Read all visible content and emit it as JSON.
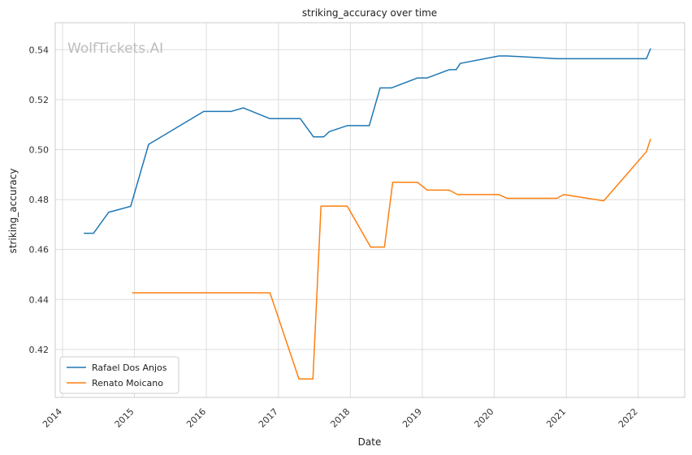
{
  "chart_data": {
    "type": "line",
    "title": "striking_accuracy over time",
    "xlabel": "Date",
    "ylabel": "striking_accuracy",
    "watermark": "WolfTickets.AI",
    "xlim": [
      "2013-11-25",
      "2022-08-25"
    ],
    "ylim": [
      0.4008,
      0.5508
    ],
    "x_ticks": [
      "2014",
      "2015",
      "2016",
      "2017",
      "2018",
      "2019",
      "2020",
      "2021",
      "2022"
    ],
    "y_ticks": [
      "0.42",
      "0.44",
      "0.46",
      "0.48",
      "0.50",
      "0.52",
      "0.54"
    ],
    "grid": true,
    "legend_position": "lower-left",
    "series": [
      {
        "name": "Rafael Dos Anjos",
        "color": "#1f77b4",
        "x": [
          "2014-04-19",
          "2014-06-07",
          "2014-08-23",
          "2014-12-13",
          "2015-03-14",
          "2015-12-19",
          "2016-05-07",
          "2016-07-07",
          "2016-11-19",
          "2017-04-22",
          "2017-06-28",
          "2017-08-19",
          "2017-09-16",
          "2017-12-16",
          "2018-04-07",
          "2018-06-01",
          "2018-07-28",
          "2018-12-08",
          "2019-01-26",
          "2019-05-18",
          "2019-06-22",
          "2019-07-13",
          "2020-01-25",
          "2020-03-07",
          "2020-11-14",
          "2022-02-12",
          "2022-03-05"
        ],
        "values": [
          0.4665,
          0.4665,
          0.4749,
          0.4773,
          0.5021,
          0.5153,
          0.5153,
          0.5167,
          0.5124,
          0.5124,
          0.5051,
          0.5051,
          0.5072,
          0.5096,
          0.5096,
          0.5247,
          0.5247,
          0.5287,
          0.5287,
          0.532,
          0.532,
          0.5345,
          0.5375,
          0.5375,
          0.5364,
          0.5364,
          0.5405
        ]
      },
      {
        "name": "Renato Moicano",
        "color": "#ff7f0e",
        "x": [
          "2014-12-20",
          "2016-11-19",
          "2017-04-15",
          "2017-06-25",
          "2017-08-05",
          "2017-12-16",
          "2018-04-14",
          "2018-06-23",
          "2018-08-04",
          "2018-12-08",
          "2019-01-26",
          "2019-05-18",
          "2019-06-29",
          "2020-01-25",
          "2020-03-07",
          "2020-11-14",
          "2020-12-19",
          "2021-07-10",
          "2022-02-12",
          "2022-03-05"
        ],
        "values": [
          0.4427,
          0.4427,
          0.4082,
          0.4082,
          0.4774,
          0.4774,
          0.461,
          0.461,
          0.4869,
          0.4869,
          0.4838,
          0.4838,
          0.482,
          0.482,
          0.4805,
          0.4805,
          0.482,
          0.4795,
          0.4992,
          0.5043
        ]
      }
    ]
  }
}
